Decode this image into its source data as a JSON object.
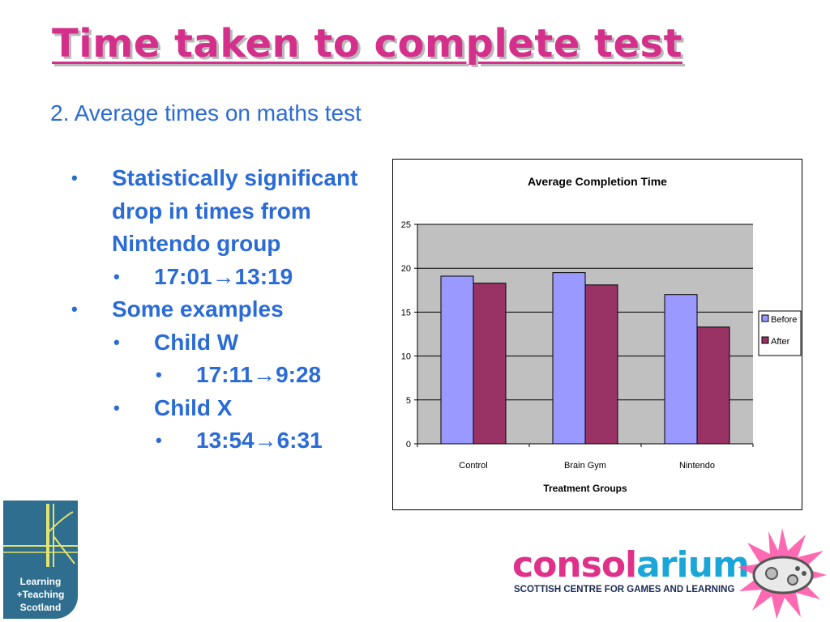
{
  "slide": {
    "title": "Time taken to complete test",
    "subtitle": "2.  Average times on maths test"
  },
  "bullets": [
    {
      "level": 1,
      "text": "Statistically significant drop in times from Nintendo group"
    },
    {
      "level": 2,
      "text": "17:01→13:19"
    },
    {
      "level": 1,
      "text": "Some examples"
    },
    {
      "level": 2,
      "text": "Child W"
    },
    {
      "level": 3,
      "text": "17:11→9:28"
    },
    {
      "level": 2,
      "text": "Child X"
    },
    {
      "level": 3,
      "text": "13:54→6:31"
    }
  ],
  "colors": {
    "title": "#d42f8a",
    "text": "#2a6bd6",
    "plot_bg": "#c0c0c0",
    "before": "#9999ff",
    "after": "#993366"
  },
  "chart_data": {
    "type": "bar",
    "title": "Average Completion Time",
    "xlabel": "Treatment Groups",
    "ylabel": "",
    "categories": [
      "Control",
      "Brain Gym",
      "Nintendo"
    ],
    "series": [
      {
        "name": "Before",
        "values": [
          19.1,
          19.5,
          17.0
        ]
      },
      {
        "name": "After",
        "values": [
          18.3,
          18.1,
          13.3
        ]
      }
    ],
    "ylim": [
      0,
      25
    ],
    "yticks": [
      0,
      5,
      10,
      15,
      20,
      25
    ],
    "grid": true,
    "legend": "right"
  },
  "logos": {
    "lts_lines": [
      "Learning",
      "+Teaching",
      "Scotland"
    ],
    "consolarium": {
      "word_part1": "consol",
      "word_part2": "arium",
      "tagline": "SCOTTISH CENTRE FOR GAMES AND LEARNING"
    }
  }
}
